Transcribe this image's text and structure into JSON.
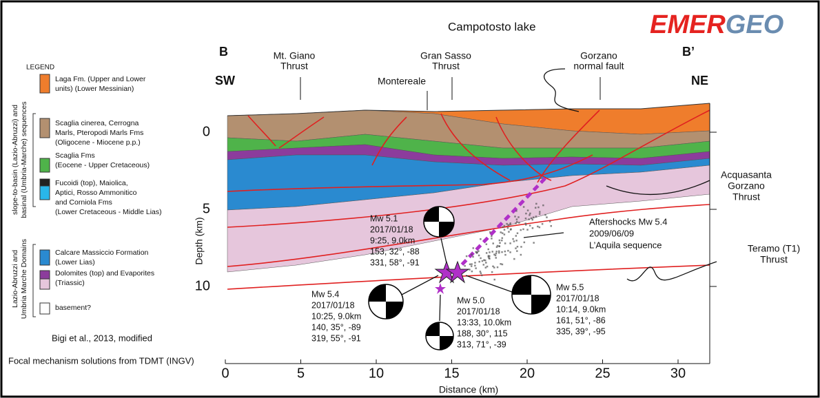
{
  "header": {
    "logo": [
      "EMER",
      "GEO"
    ],
    "lake": "Campotosto lake"
  },
  "section": {
    "start": "B",
    "end": "B’",
    "left_dir": "SW",
    "right_dir": "NE"
  },
  "structures": {
    "mt_giano": [
      "Mt. Giano",
      "Thrust"
    ],
    "montereale": [
      "Montereale"
    ],
    "gran_sasso": [
      "Gran Sasso",
      "Thrust"
    ],
    "gorzano": [
      "Gorzano",
      "normal fault"
    ],
    "acquasanta": [
      "Acquasanta",
      "Gorzano",
      "Thrust"
    ],
    "teramo": [
      "Teramo (T1)",
      "Thrust"
    ],
    "aftershocks": [
      "Aftershocks Mw 5.4",
      "2009/06/09",
      "L’Aquila sequence"
    ]
  },
  "legend": {
    "title": "LEGEND",
    "groups": [
      [
        "slope-to-basin (Lazio-Abruzzi) and",
        "basinal (Umbria-Marche) sequences"
      ],
      [
        "Lazio-Abruzzi and",
        "Umbria Marche Domains"
      ]
    ],
    "items": [
      {
        "lines": [
          "Laga Fm. (Upper and Lower",
          "units) (Lower Messinian)"
        ]
      },
      {
        "lines": [
          "Scaglia cinerea, Cerrogna",
          "Marls, Pteropodi Marls Fms",
          "(Oligocene - Miocene p.p.)"
        ]
      },
      {
        "lines": [
          "Scaglia Fms",
          "(Eocene - Upper Cretaceous)"
        ]
      },
      {
        "lines": [
          "Fucoidi (top), Maiolica,",
          "Aptici, Rosso Ammonitico",
          "and Corniola Fms",
          "(Lower Cretaceous - Middle Lias)"
        ]
      },
      {
        "lines": [
          "Calcare Massiccio Formation",
          "(Lower Lias)"
        ]
      },
      {
        "lines": [
          "Dolomites (top) and Evaporites",
          "(Triassic)"
        ]
      },
      {
        "lines": [
          "basement?"
        ]
      }
    ]
  },
  "credits": [
    "Bigi et al., 2013, modified",
    "Focal mechanism solutions from TDMT (INGV)"
  ],
  "axes": {
    "x_title": "Distance (km)",
    "y_title": "Depth (km)",
    "xticks": [
      0,
      5,
      10,
      15,
      20,
      25,
      30
    ],
    "yticks": [
      0,
      5,
      10
    ]
  },
  "events": [
    {
      "lines": [
        "Mw 5.1",
        "2017/01/18",
        "9:25, 9.0km",
        "153, 32°, -88",
        "331, 58°, -91"
      ]
    },
    {
      "lines": [
        "Mw 5.4",
        "2017/01/18",
        "10:25, 9.0km",
        "140, 35°, -89",
        "319, 55°, -91"
      ]
    },
    {
      "lines": [
        "Mw 5.0",
        "2017/01/18",
        "13:33, 10.0km",
        "188, 30°, 115",
        "313, 71°, -39"
      ]
    },
    {
      "lines": [
        "Mw 5.5",
        "2017/01/18",
        "10:14, 9.0km",
        "161, 51°, -86",
        "335, 39°, -95"
      ]
    }
  ]
}
